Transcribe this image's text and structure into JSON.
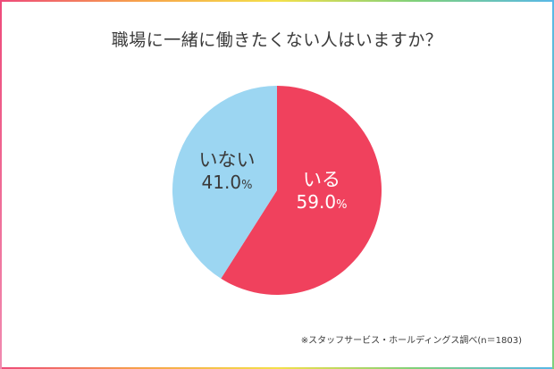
{
  "title": "職場に一緒に働きたくない人はいますか？",
  "source": "※スタッフサービス・ホールディングス調べ(n＝1803)",
  "colors": {
    "yes": "#f0415d",
    "no": "#9cd6f2"
  },
  "chart_data": {
    "type": "pie",
    "title": "職場に一緒に働きたくない人はいますか？",
    "slices": [
      {
        "label": "いる",
        "value": 59.0,
        "display": "59.0",
        "unit": "%",
        "color": "#f0415d"
      },
      {
        "label": "いない",
        "value": 41.0,
        "display": "41.0",
        "unit": "%",
        "color": "#9cd6f2"
      }
    ],
    "start": "12 o'clock",
    "direction": "clockwise",
    "legend": "none"
  }
}
